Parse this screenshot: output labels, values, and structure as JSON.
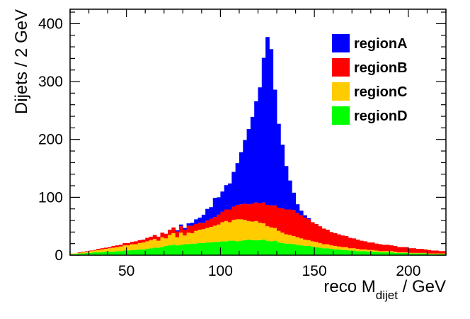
{
  "chart_data": {
    "type": "bar",
    "stacked": true,
    "xlabel": "reco M",
    "xlabel_sub": "dijet",
    "xlabel_unit": " / GeV",
    "ylabel": "Dijets / 2 GeV",
    "xlim": [
      20,
      220
    ],
    "ylim": [
      0,
      425
    ],
    "bin_width": 2,
    "x_ticks": [
      50,
      100,
      150,
      200
    ],
    "y_ticks": [
      0,
      100,
      200,
      300,
      400
    ],
    "legend_position": "top-right",
    "grid": false,
    "x": [
      21,
      23,
      25,
      27,
      29,
      31,
      33,
      35,
      37,
      39,
      41,
      43,
      45,
      47,
      49,
      51,
      53,
      55,
      57,
      59,
      61,
      63,
      65,
      67,
      69,
      71,
      73,
      75,
      77,
      79,
      81,
      83,
      85,
      87,
      89,
      91,
      93,
      95,
      97,
      99,
      101,
      103,
      105,
      107,
      109,
      111,
      113,
      115,
      117,
      119,
      121,
      123,
      125,
      127,
      129,
      131,
      133,
      135,
      137,
      139,
      141,
      143,
      145,
      147,
      149,
      151,
      153,
      155,
      157,
      159,
      161,
      163,
      165,
      167,
      169,
      171,
      173,
      175,
      177,
      179,
      181,
      183,
      185,
      187,
      189,
      191,
      193,
      195,
      197,
      199,
      201,
      203,
      205,
      207,
      209,
      211,
      213,
      215,
      217,
      219
    ],
    "series": [
      {
        "name": "regionD",
        "color": "#00ff00",
        "values": [
          2,
          2,
          3,
          3,
          4,
          4,
          5,
          5,
          5,
          6,
          6,
          6,
          7,
          7,
          8,
          8,
          9,
          9,
          10,
          10,
          11,
          12,
          13,
          13,
          14,
          16,
          17,
          18,
          17,
          18,
          19,
          19,
          20,
          20,
          21,
          21,
          22,
          22,
          23,
          23,
          24,
          24,
          25,
          25,
          24,
          25,
          26,
          27,
          26,
          26,
          26,
          27,
          25,
          24,
          25,
          22,
          21,
          20,
          20,
          19,
          18,
          17,
          16,
          16,
          15,
          14,
          13,
          12,
          12,
          11,
          10,
          10,
          9,
          9,
          8,
          8,
          7,
          7,
          7,
          6,
          6,
          6,
          5,
          5,
          5,
          5,
          4,
          4,
          4,
          4,
          3,
          3,
          3,
          3,
          3,
          2,
          2,
          2,
          2,
          2
        ]
      },
      {
        "name": "regionC",
        "color": "#ffcc00",
        "values": [
          1,
          1,
          1,
          2,
          2,
          3,
          3,
          4,
          5,
          5,
          6,
          7,
          7,
          8,
          9,
          9,
          10,
          10,
          11,
          12,
          13,
          14,
          15,
          12,
          17,
          13,
          18,
          20,
          14,
          21,
          15,
          20,
          18,
          22,
          23,
          24,
          25,
          27,
          28,
          30,
          33,
          35,
          32,
          36,
          38,
          37,
          35,
          32,
          32,
          33,
          30,
          28,
          25,
          24,
          22,
          20,
          18,
          16,
          15,
          14,
          13,
          12,
          11,
          10,
          9,
          9,
          8,
          7,
          7,
          6,
          6,
          5,
          5,
          5,
          4,
          4,
          4,
          3,
          3,
          3,
          3,
          2,
          2,
          2,
          2,
          2,
          2,
          1,
          1,
          1,
          1,
          1,
          1,
          1,
          1,
          1,
          1,
          1,
          1,
          1
        ]
      },
      {
        "name": "regionB",
        "color": "#ff0000",
        "values": [
          0,
          0,
          1,
          1,
          1,
          1,
          1,
          2,
          2,
          2,
          2,
          3,
          3,
          3,
          4,
          4,
          4,
          5,
          5,
          5,
          6,
          6,
          7,
          7,
          8,
          8,
          9,
          10,
          10,
          11,
          10,
          12,
          13,
          12,
          12,
          11,
          13,
          14,
          15,
          17,
          18,
          20,
          22,
          23,
          25,
          26,
          28,
          29,
          31,
          32,
          34,
          36,
          37,
          38,
          39,
          40,
          42,
          43,
          44,
          45,
          42,
          40,
          38,
          36,
          33,
          31,
          29,
          27,
          25,
          23,
          22,
          21,
          20,
          19,
          18,
          17,
          16,
          15,
          14,
          13,
          13,
          12,
          12,
          11,
          11,
          10,
          10,
          9,
          9,
          9,
          8,
          8,
          7,
          7,
          6,
          6,
          5,
          5,
          4,
          4
        ]
      },
      {
        "name": "regionA",
        "color": "#0000ff",
        "values": [
          0,
          0,
          0,
          0,
          0,
          0,
          0,
          0,
          0,
          0,
          0,
          0,
          0,
          0,
          0,
          0,
          0,
          0,
          0,
          0,
          0,
          0,
          0,
          0,
          0,
          0,
          0,
          0,
          2,
          3,
          3,
          4,
          5,
          8,
          9,
          14,
          20,
          20,
          33,
          30,
          35,
          42,
          45,
          60,
          72,
          90,
          110,
          130,
          150,
          175,
          200,
          250,
          290,
          270,
          200,
          145,
          110,
          75,
          50,
          30,
          15,
          8,
          4,
          2,
          0,
          0,
          0,
          0,
          0,
          0,
          0,
          0,
          0,
          0,
          0,
          0,
          0,
          0,
          0,
          0,
          0,
          0,
          0,
          0,
          0,
          0,
          0,
          0,
          0,
          0,
          0,
          0,
          0,
          0,
          0,
          0,
          0,
          0,
          0,
          0
        ]
      }
    ]
  }
}
